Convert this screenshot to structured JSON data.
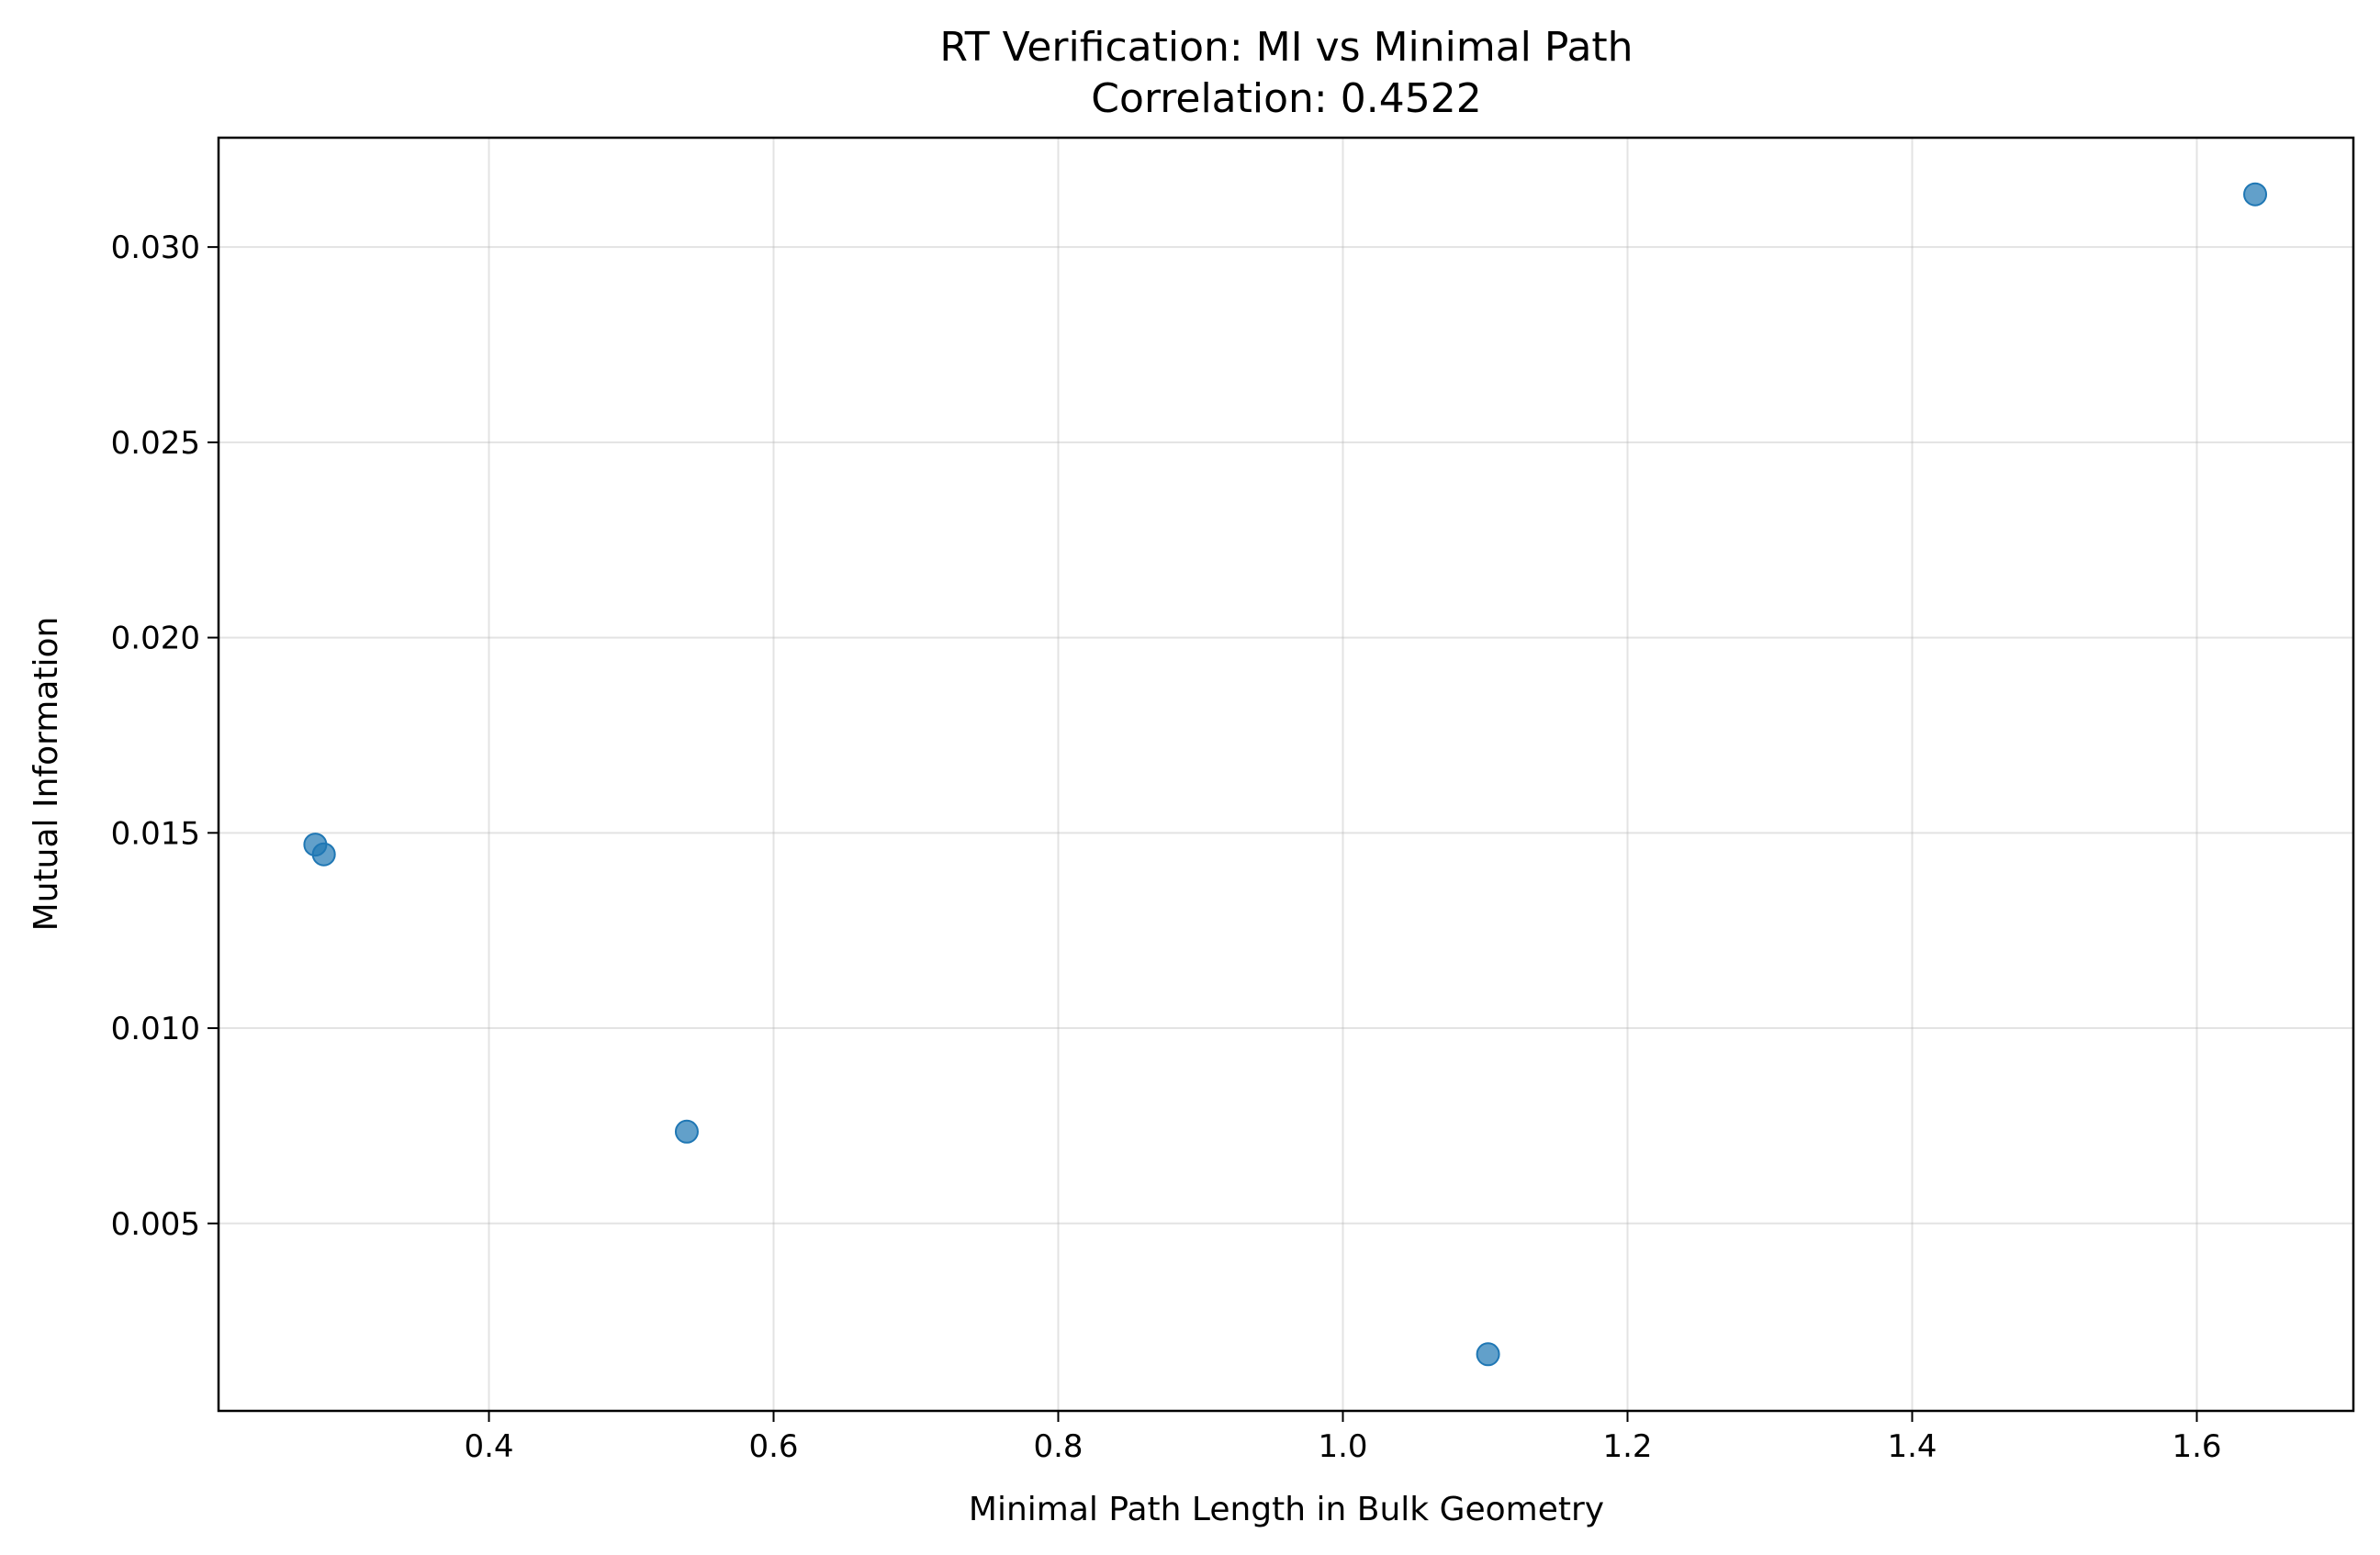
{
  "chart_data": {
    "type": "scatter",
    "title": "RT Verification: MI vs Minimal Path",
    "subtitle": "Correlation: 0.4522",
    "xlabel": "Minimal Path Length in Bulk Geometry",
    "ylabel": "Mutual Information",
    "xlim": [
      0.21,
      1.71
    ],
    "ylim": [
      0.0002,
      0.0328
    ],
    "xticks": [
      0.4,
      0.6,
      0.8,
      1.0,
      1.2,
      1.4,
      1.6
    ],
    "xtick_labels": [
      "0.4",
      "0.6",
      "0.8",
      "1.0",
      "1.2",
      "1.4",
      "1.6"
    ],
    "yticks": [
      0.005,
      0.01,
      0.015,
      0.02,
      0.025,
      0.03
    ],
    "ytick_labels": [
      "0.005",
      "0.010",
      "0.015",
      "0.020",
      "0.025",
      "0.030"
    ],
    "grid": true,
    "marker_color": "#1f77b4",
    "points": [
      {
        "x": 0.278,
        "y": 0.0147
      },
      {
        "x": 0.284,
        "y": 0.01445
      },
      {
        "x": 0.539,
        "y": 0.00735
      },
      {
        "x": 1.102,
        "y": 0.00165
      },
      {
        "x": 1.641,
        "y": 0.03135
      }
    ]
  }
}
